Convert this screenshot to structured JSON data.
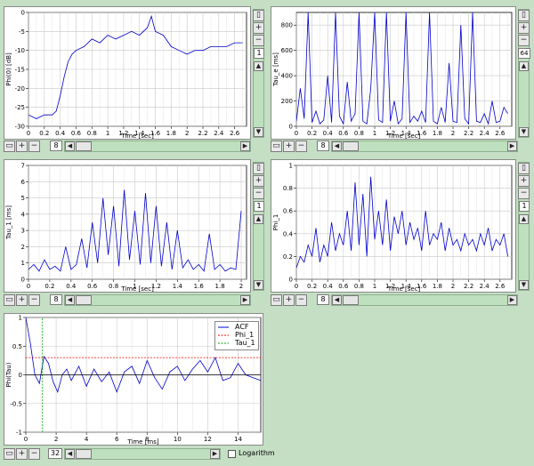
{
  "colors": {
    "background": "#c5dfc5",
    "trace": "#0000cc",
    "threshold_red": "#ff0000",
    "threshold_green": "#00aa00"
  },
  "controls": {
    "zoom_in_icon": "magnifier-plus-icon",
    "zoom_out_icon": "magnifier-minus-icon",
    "fit_icon": "fit-window-icon",
    "logarithm_label": "Logarithm"
  },
  "panels": [
    {
      "id": "phi0",
      "ylabel": "Phi(0) [dB]",
      "xlabel": "Time [sec]",
      "step_value": "8",
      "side_value": "1"
    },
    {
      "id": "tau_e",
      "ylabel": "Tau_e [ms]",
      "xlabel": "Time [sec]",
      "step_value": "8",
      "side_value": "64"
    },
    {
      "id": "tau_1",
      "ylabel": "Tau_1 [ms]",
      "xlabel": "Time [sec]",
      "step_value": "8",
      "side_value": "1"
    },
    {
      "id": "phi_1",
      "ylabel": "Phi_1",
      "xlabel": "Time [sec]",
      "step_value": "8",
      "side_value": "1"
    },
    {
      "id": "acf",
      "ylabel": "Phi(Tau)",
      "xlabel": "Time [ms]",
      "step_value": "32",
      "legend": [
        "ACF",
        "Phi_1",
        "Tau_1"
      ]
    }
  ],
  "chart_data": [
    {
      "type": "line",
      "xlabel": "Time [sec]",
      "ylabel": "Phi(0) [dB]",
      "xlim": [
        0,
        2.75
      ],
      "ylim": [
        -30,
        0
      ],
      "xticks": [
        "0",
        "0.2",
        "0.4",
        "0.6",
        "0.8",
        "1",
        "1.2",
        "1.4",
        "1.6",
        "1.8",
        "2",
        "2.2",
        "2.4",
        "2.6"
      ],
      "yticks": [
        "0",
        "-5",
        "-10",
        "-15",
        "-20",
        "-25",
        "-30"
      ],
      "x": [
        0,
        0.1,
        0.2,
        0.3,
        0.35,
        0.4,
        0.45,
        0.5,
        0.55,
        0.6,
        0.7,
        0.8,
        0.9,
        1.0,
        1.1,
        1.2,
        1.3,
        1.4,
        1.5,
        1.55,
        1.6,
        1.7,
        1.8,
        1.9,
        2.0,
        2.1,
        2.2,
        2.3,
        2.4,
        2.5,
        2.6,
        2.7
      ],
      "y": [
        -27,
        -28,
        -27,
        -27,
        -26,
        -22,
        -17,
        -13,
        -11,
        -10,
        -9,
        -7,
        -8,
        -6,
        -7,
        -6,
        -5,
        -6,
        -4,
        -1,
        -5,
        -6,
        -9,
        -10,
        -11,
        -10,
        -10,
        -9,
        -9,
        -9,
        -8,
        -8
      ]
    },
    {
      "type": "line",
      "xlabel": "Time [sec]",
      "ylabel": "Tau_e [ms]",
      "xlim": [
        0,
        2.75
      ],
      "ylim": [
        0,
        900
      ],
      "xticks": [
        "0",
        "0.2",
        "0.4",
        "0.6",
        "0.8",
        "1",
        "1.2",
        "1.4",
        "1.6",
        "1.8",
        "2",
        "2.2",
        "2.4",
        "2.6"
      ],
      "yticks": [
        "0",
        "200",
        "400",
        "600",
        "800"
      ],
      "x": [
        0,
        0.05,
        0.1,
        0.15,
        0.2,
        0.25,
        0.3,
        0.35,
        0.4,
        0.45,
        0.5,
        0.55,
        0.6,
        0.65,
        0.7,
        0.75,
        0.8,
        0.85,
        0.9,
        0.95,
        1.0,
        1.05,
        1.1,
        1.15,
        1.2,
        1.25,
        1.3,
        1.35,
        1.4,
        1.45,
        1.5,
        1.55,
        1.6,
        1.65,
        1.7,
        1.75,
        1.8,
        1.85,
        1.9,
        1.95,
        2.0,
        2.05,
        2.1,
        2.15,
        2.2,
        2.25,
        2.3,
        2.35,
        2.4,
        2.45,
        2.5,
        2.55,
        2.6,
        2.65,
        2.7
      ],
      "y": [
        40,
        300,
        60,
        900,
        30,
        120,
        20,
        50,
        400,
        30,
        900,
        80,
        20,
        350,
        40,
        100,
        900,
        40,
        20,
        300,
        900,
        50,
        30,
        900,
        40,
        200,
        20,
        60,
        900,
        30,
        80,
        40,
        120,
        30,
        900,
        40,
        20,
        150,
        30,
        500,
        40,
        30,
        800,
        60,
        20,
        900,
        40,
        30,
        100,
        20,
        200,
        30,
        40,
        150,
        100
      ]
    },
    {
      "type": "line",
      "xlabel": "Time [sec]",
      "ylabel": "Tau_1 [ms]",
      "xlim": [
        0,
        2.05
      ],
      "ylim": [
        0,
        7
      ],
      "xticks": [
        "0",
        "0.2",
        "0.4",
        "0.6",
        "0.8",
        "1",
        "1.2",
        "1.4",
        "1.6",
        "1.8",
        "2"
      ],
      "yticks": [
        "0",
        "1",
        "2",
        "3",
        "4",
        "5",
        "6",
        "7"
      ],
      "x": [
        0,
        0.05,
        0.1,
        0.15,
        0.2,
        0.25,
        0.3,
        0.35,
        0.4,
        0.45,
        0.5,
        0.55,
        0.6,
        0.65,
        0.7,
        0.75,
        0.8,
        0.85,
        0.9,
        0.95,
        1.0,
        1.05,
        1.1,
        1.15,
        1.2,
        1.25,
        1.3,
        1.35,
        1.4,
        1.45,
        1.5,
        1.55,
        1.6,
        1.65,
        1.7,
        1.75,
        1.8,
        1.85,
        1.9,
        1.95,
        2.0
      ],
      "y": [
        0.6,
        0.9,
        0.5,
        1.2,
        0.6,
        0.8,
        0.5,
        2.0,
        0.6,
        0.9,
        2.5,
        0.7,
        3.5,
        1.0,
        5.0,
        1.5,
        4.5,
        0.8,
        5.5,
        1.2,
        4.2,
        0.9,
        5.3,
        1.0,
        4.5,
        0.8,
        3.5,
        0.6,
        3.0,
        0.7,
        1.2,
        0.6,
        0.9,
        0.5,
        2.8,
        0.6,
        0.9,
        0.5,
        0.7,
        0.6,
        4.2
      ]
    },
    {
      "type": "line",
      "xlabel": "Time [sec]",
      "ylabel": "Phi_1",
      "xlim": [
        0,
        2.75
      ],
      "ylim": [
        0,
        1
      ],
      "xticks": [
        "0",
        "0.2",
        "0.4",
        "0.6",
        "0.8",
        "1",
        "1.2",
        "1.4",
        "1.6",
        "1.8",
        "2",
        "2.2",
        "2.4",
        "2.6"
      ],
      "yticks": [
        "0",
        "0.2",
        "0.4",
        "0.6",
        "0.8",
        "1"
      ],
      "x": [
        0,
        0.05,
        0.1,
        0.15,
        0.2,
        0.25,
        0.3,
        0.35,
        0.4,
        0.45,
        0.5,
        0.55,
        0.6,
        0.65,
        0.7,
        0.75,
        0.8,
        0.85,
        0.9,
        0.95,
        1.0,
        1.05,
        1.1,
        1.15,
        1.2,
        1.25,
        1.3,
        1.35,
        1.4,
        1.45,
        1.5,
        1.55,
        1.6,
        1.65,
        1.7,
        1.75,
        1.8,
        1.85,
        1.9,
        1.95,
        2.0,
        2.05,
        2.1,
        2.15,
        2.2,
        2.25,
        2.3,
        2.35,
        2.4,
        2.45,
        2.5,
        2.55,
        2.6,
        2.65,
        2.7
      ],
      "y": [
        0.1,
        0.2,
        0.15,
        0.3,
        0.2,
        0.45,
        0.15,
        0.3,
        0.2,
        0.5,
        0.25,
        0.4,
        0.3,
        0.6,
        0.25,
        0.85,
        0.3,
        0.75,
        0.2,
        0.9,
        0.35,
        0.6,
        0.3,
        0.7,
        0.25,
        0.55,
        0.4,
        0.6,
        0.3,
        0.5,
        0.35,
        0.45,
        0.25,
        0.6,
        0.3,
        0.4,
        0.35,
        0.5,
        0.25,
        0.45,
        0.3,
        0.35,
        0.25,
        0.4,
        0.3,
        0.35,
        0.25,
        0.4,
        0.3,
        0.45,
        0.25,
        0.35,
        0.3,
        0.4,
        0.2
      ]
    },
    {
      "type": "line",
      "xlabel": "Time [ms]",
      "ylabel": "Phi(Tau)",
      "xlim": [
        0,
        15.5
      ],
      "ylim": [
        -1,
        1
      ],
      "xticks": [
        "0",
        "2",
        "4",
        "6",
        "8",
        "10",
        "12",
        "14"
      ],
      "yticks": [
        "1",
        "0.5",
        "0",
        "-0.5",
        "-1"
      ],
      "series": [
        {
          "name": "ACF",
          "x": [
            0,
            0.3,
            0.6,
            0.9,
            1.2,
            1.5,
            1.8,
            2.1,
            2.4,
            2.7,
            3.0,
            3.5,
            4.0,
            4.5,
            5.0,
            5.5,
            6.0,
            6.5,
            7.0,
            7.5,
            8.0,
            8.5,
            9.0,
            9.5,
            10.0,
            10.5,
            11.0,
            11.5,
            12.0,
            12.5,
            13.0,
            13.5,
            14.0,
            14.5,
            15.0,
            15.5
          ],
          "y": [
            1.0,
            0.55,
            0.0,
            -0.15,
            0.32,
            0.2,
            -0.12,
            -0.3,
            0.0,
            0.1,
            -0.1,
            0.15,
            -0.2,
            0.1,
            -0.12,
            0.05,
            -0.3,
            0.05,
            0.15,
            -0.15,
            0.25,
            -0.05,
            -0.25,
            0.05,
            0.15,
            -0.1,
            0.1,
            0.25,
            0.05,
            0.3,
            -0.1,
            -0.05,
            0.2,
            0.0,
            -0.05,
            -0.1
          ]
        },
        {
          "name": "Phi_1",
          "x": [
            0,
            15.5
          ],
          "y": [
            0.3,
            0.3
          ]
        },
        {
          "name": "Tau_1",
          "x": [
            1.1,
            1.1
          ],
          "y": [
            -1,
            1
          ]
        }
      ]
    }
  ]
}
